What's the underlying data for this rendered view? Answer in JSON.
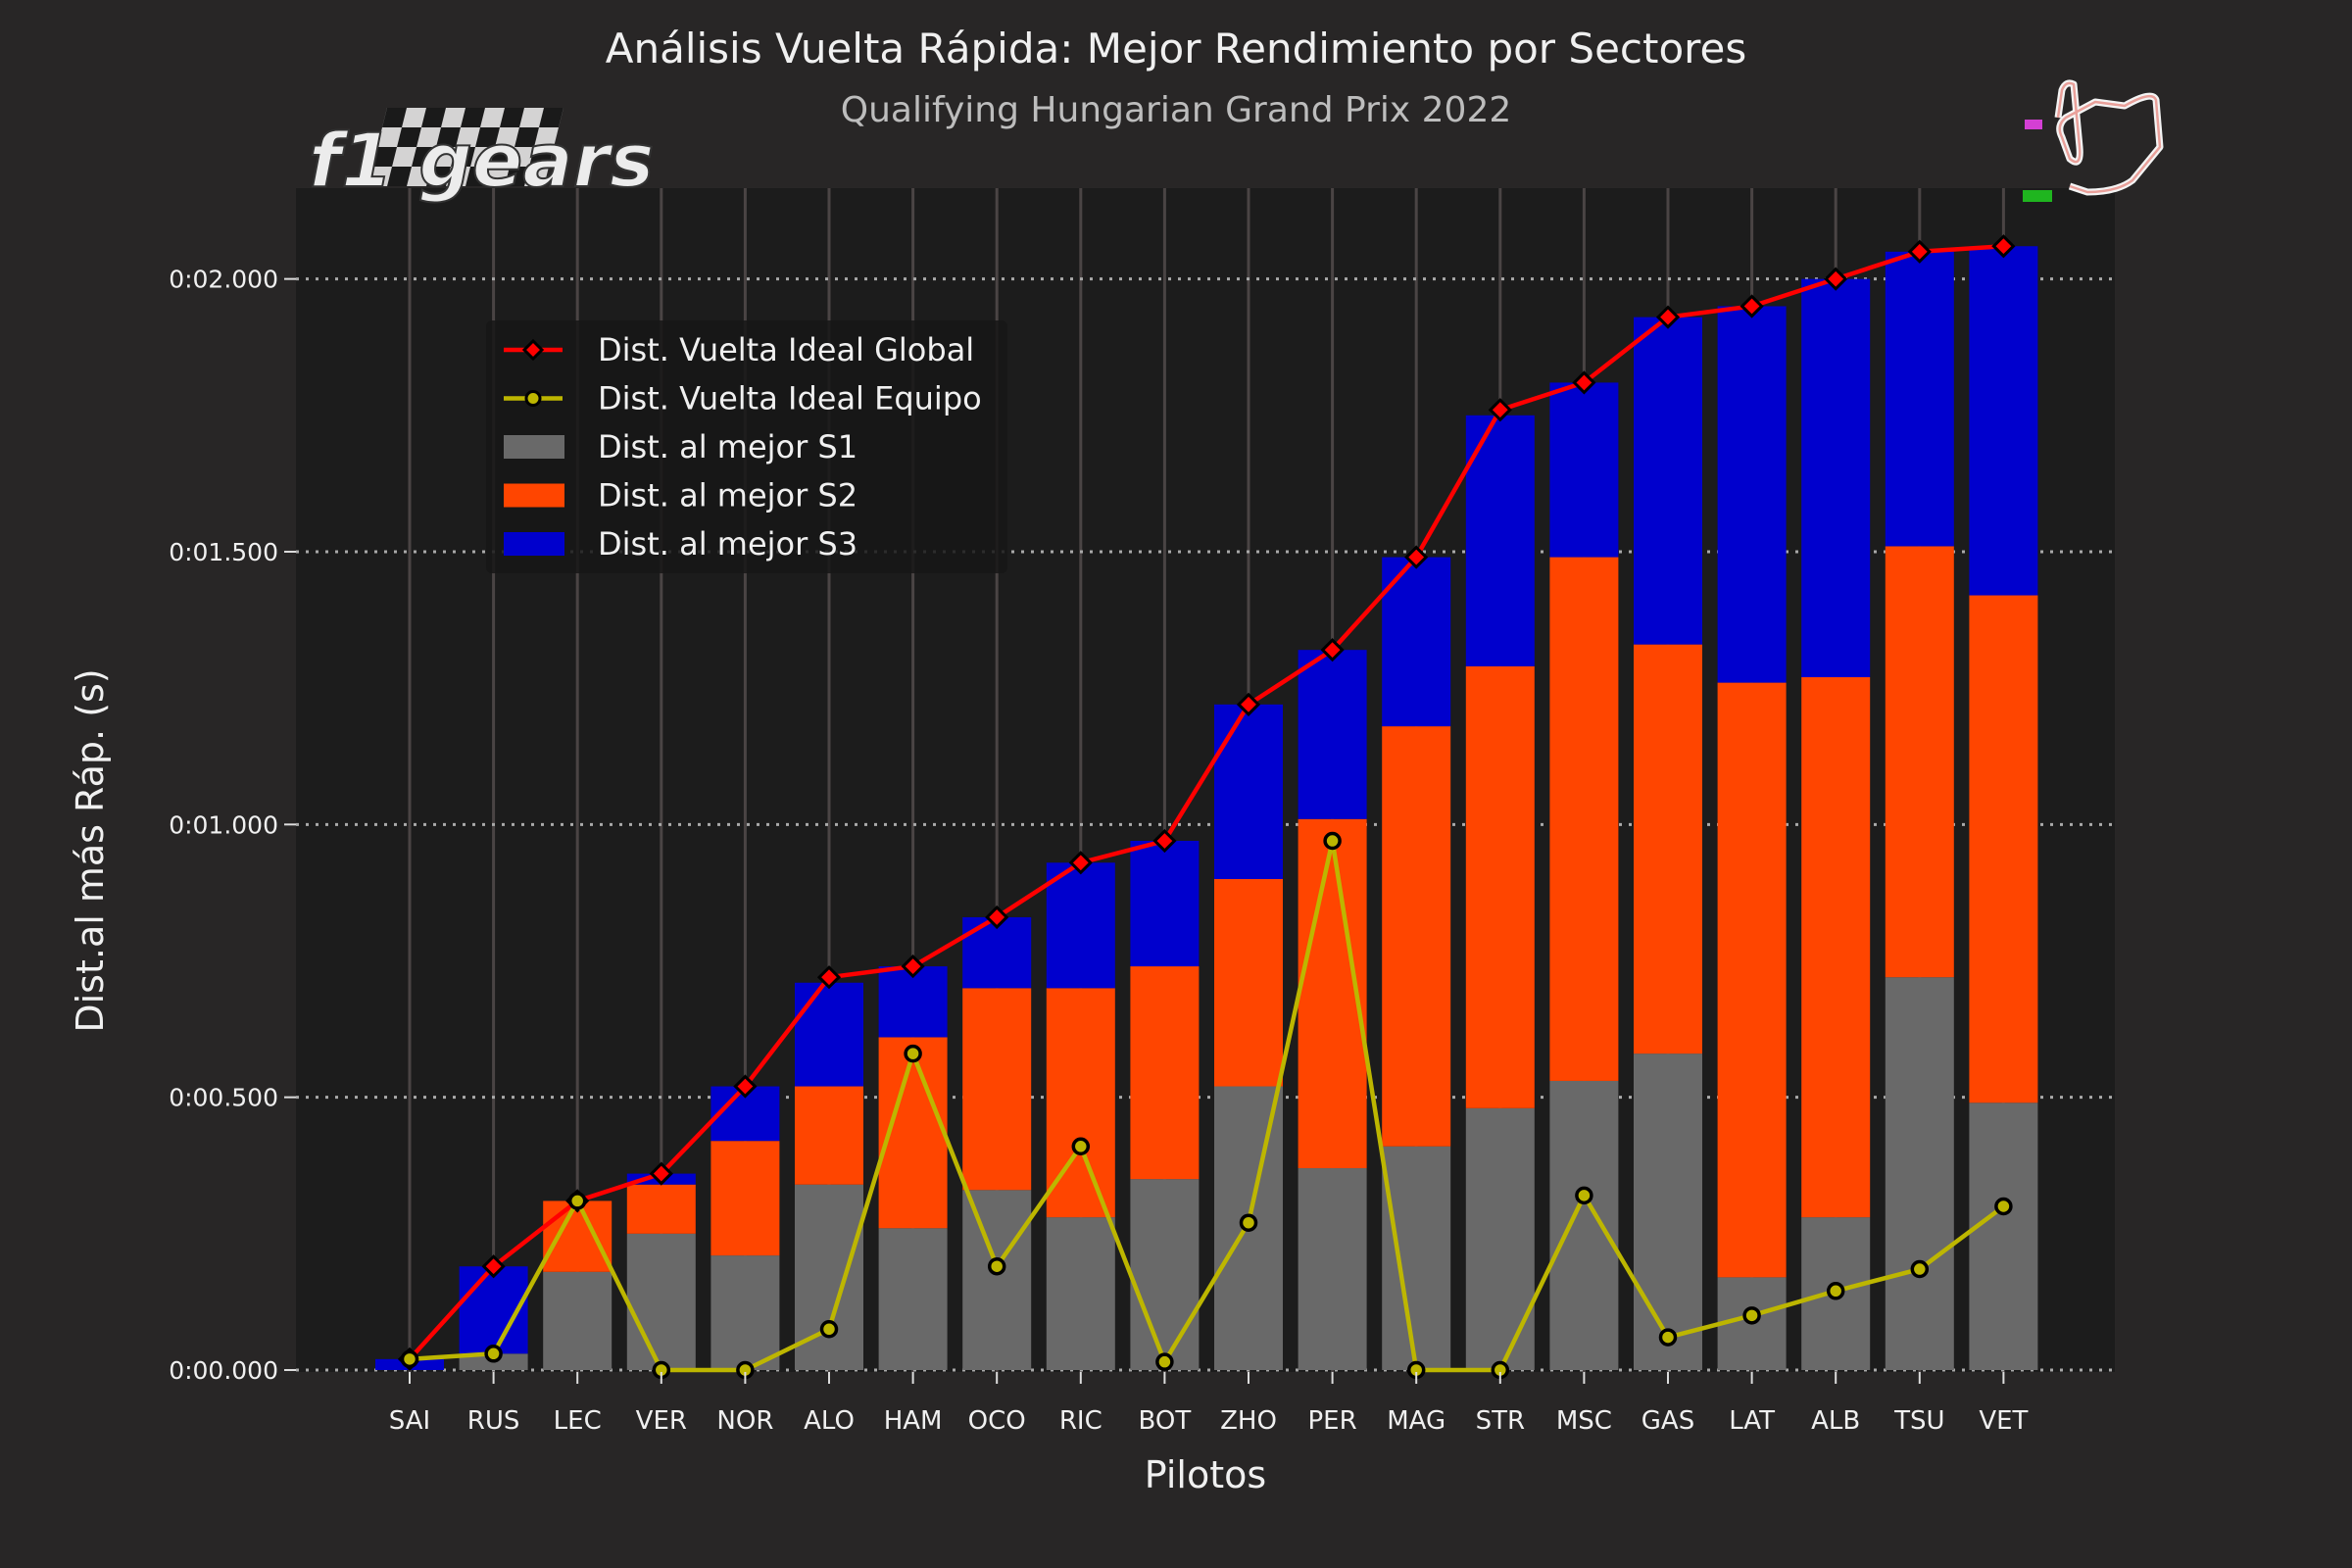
{
  "chart_data": {
    "type": "bar",
    "title": "Análisis Vuelta Rápida: Mejor Rendimiento por Sectores",
    "subtitle": "Qualifying Hungarian Grand Prix 2022",
    "xlabel": "Pilotos",
    "ylabel": "Dist.al más Ráp. (s)",
    "logo_text": "f1 gears",
    "ylim": [
      0,
      2.17
    ],
    "yticks": [
      0,
      0.5,
      1.0,
      1.5,
      2.0
    ],
    "ytick_labels": [
      "0:00.000",
      "0:00.500",
      "0:01.000",
      "0:01.500",
      "0:02.000"
    ],
    "grid": "horizontal dotted",
    "legend_position": "upper-left",
    "categories": [
      "SAI",
      "RUS",
      "LEC",
      "VER",
      "NOR",
      "ALO",
      "HAM",
      "OCO",
      "RIC",
      "BOT",
      "ZHO",
      "PER",
      "MAG",
      "STR",
      "MSC",
      "GAS",
      "LAT",
      "ALB",
      "TSU",
      "VET"
    ],
    "stacked_series": [
      {
        "name": "Dist. al mejor S1",
        "color": "#696969",
        "values": [
          0.0,
          0.03,
          0.18,
          0.25,
          0.21,
          0.34,
          0.26,
          0.33,
          0.28,
          0.35,
          0.52,
          0.37,
          0.41,
          0.48,
          0.53,
          0.58,
          0.17,
          0.28,
          0.72,
          0.49
        ]
      },
      {
        "name": "Dist. al mejor S2",
        "color": "#ff4500",
        "values": [
          0.0,
          0.0,
          0.13,
          0.09,
          0.21,
          0.18,
          0.35,
          0.37,
          0.42,
          0.39,
          0.38,
          0.64,
          0.77,
          0.81,
          0.96,
          0.75,
          1.09,
          0.99,
          0.79,
          0.93
        ]
      },
      {
        "name": "Dist. al mejor S3",
        "color": "#0000cd",
        "values": [
          0.02,
          0.16,
          0.0,
          0.02,
          0.1,
          0.19,
          0.13,
          0.13,
          0.23,
          0.23,
          0.32,
          0.31,
          0.31,
          0.46,
          0.32,
          0.6,
          0.69,
          0.73,
          0.54,
          0.64
        ]
      }
    ],
    "line_series": [
      {
        "name": "Dist. Vuelta Ideal Global",
        "color": "#ff0000",
        "marker": "diamond",
        "values": [
          0.02,
          0.19,
          0.31,
          0.36,
          0.52,
          0.72,
          0.74,
          0.83,
          0.93,
          0.97,
          1.22,
          1.32,
          1.49,
          1.76,
          1.81,
          1.93,
          1.95,
          2.0,
          2.05,
          2.06
        ]
      },
      {
        "name": "Dist. Vuelta Ideal Equipo",
        "color": "#bdb600",
        "marker": "circle",
        "values": [
          0.02,
          0.03,
          0.31,
          0.0,
          0.0,
          0.075,
          0.58,
          0.19,
          0.41,
          0.015,
          0.27,
          0.97,
          0.0,
          0.0,
          0.32,
          0.06,
          0.1,
          0.145,
          0.185,
          0.3
        ]
      }
    ],
    "legend_order": [
      "Dist. Vuelta Ideal Global",
      "Dist. Vuelta Ideal Equipo",
      "Dist. al mejor S1",
      "Dist. al mejor S2",
      "Dist. al mejor S3"
    ]
  }
}
